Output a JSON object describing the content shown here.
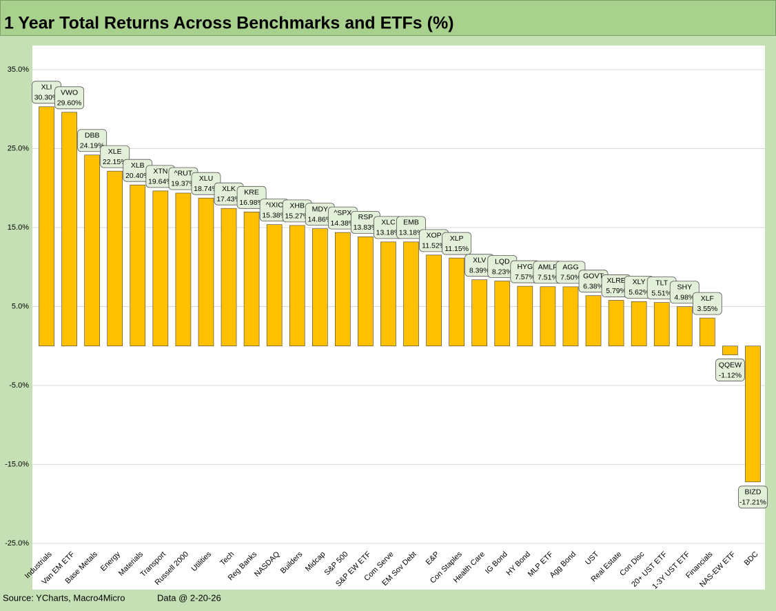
{
  "chart_data": {
    "type": "bar",
    "title": "1 Year Total Returns Across Benchmarks and ETFs (%)",
    "categories": [
      "Industrials",
      "Van EM ETF",
      "Base Metals",
      "Energy",
      "Materials",
      "Transport",
      "Russell 2000",
      "Utilities",
      "Tech",
      "Reg Banks",
      "NASDAQ",
      "Builders",
      "Midcap",
      "S&P 500",
      "S&P EW ETF",
      "Com Serve",
      "EM Sov Debt",
      "E&P",
      "Con Staples",
      "Health Care",
      "IG Bond",
      "HY Bond",
      "MLP ETF",
      "Agg Bond",
      "UST",
      "Real Estate",
      "Con Disc",
      "20+ UST ETF",
      "1-3Y UST ETF",
      "Financials",
      "NAS-EW ETF",
      "BDC"
    ],
    "tickers": [
      "XLI",
      "VWO",
      "DBB",
      "XLE",
      "XLB",
      "XTN",
      "^RUT",
      "XLU",
      "XLK",
      "KRE",
      "^IXIC",
      "XHB",
      "MDY",
      "^SPX",
      "RSP",
      "XLC",
      "EMB",
      "XOP",
      "XLP",
      "XLV",
      "LQD",
      "HYG",
      "AMLP",
      "AGG",
      "GOVT",
      "XLRE",
      "XLY",
      "TLT",
      "SHY",
      "XLF",
      "QQEW",
      "BIZD"
    ],
    "values": [
      30.3,
      29.6,
      24.19,
      22.15,
      20.4,
      19.64,
      19.37,
      18.74,
      17.43,
      16.98,
      15.38,
      15.27,
      14.86,
      14.38,
      13.83,
      13.18,
      13.18,
      11.52,
      11.15,
      8.39,
      8.23,
      7.57,
      7.51,
      7.5,
      6.38,
      5.79,
      5.62,
      5.51,
      4.98,
      3.55,
      -1.12,
      -17.21
    ],
    "value_labels": [
      "30.30%",
      "29.60%",
      "24.19%",
      "22.15%",
      "20.40%",
      "19.64%",
      "19.37%",
      "18.74%",
      "17.43%",
      "16.98%",
      "15.38%",
      "15.27%",
      "14.86%",
      "14.38%",
      "13.83%",
      "13.18%",
      "13.18%",
      "11.52%",
      "11.15%",
      "8.39%",
      "8.23%",
      "7.57%",
      "7.51%",
      "7.50%",
      "6.38%",
      "5.79%",
      "5.62%",
      "5.51%",
      "4.98%",
      "3.55%",
      "-1.12%",
      "-17.21%"
    ],
    "color": "#ffc000",
    "ylim": [
      -25,
      35
    ],
    "yticks": [
      {
        "value": -25,
        "label": "-25.0%"
      },
      {
        "value": -15,
        "label": "-15.0%"
      },
      {
        "value": -5,
        "label": "-5.0%"
      },
      {
        "value": 5,
        "label": "5.0%"
      },
      {
        "value": 15,
        "label": "15.0%"
      },
      {
        "value": 25,
        "label": "25.0%"
      },
      {
        "value": 35,
        "label": "35.0%"
      }
    ],
    "grid": true,
    "source": "Source: YCharts, Macro4Micro",
    "note": "Data @ 2-20-26"
  }
}
